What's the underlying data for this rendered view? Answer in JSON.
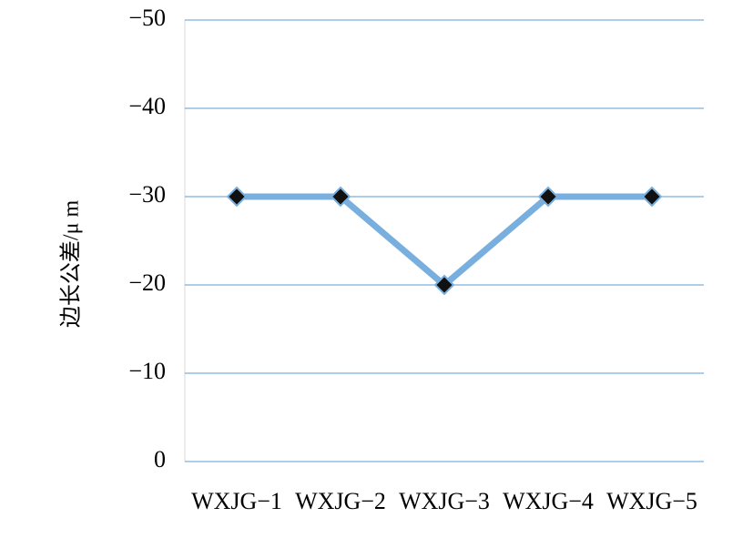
{
  "chart_data": {
    "type": "line",
    "ylabel": "边长公差/μ m",
    "categories": [
      "WXJG−1",
      "WXJG−2",
      "WXJG−3",
      "WXJG−4",
      "WXJG−5"
    ],
    "series": [
      {
        "values": [
          -30,
          -30,
          -20,
          -30,
          -30
        ],
        "color": "#79afdf",
        "marker_color": "#111111"
      }
    ],
    "ylim": [
      0,
      -50
    ],
    "yticks": [
      0,
      {
        "value": -10,
        "label": "−10"
      },
      {
        "value": -20,
        "label": "−20"
      },
      {
        "value": -30,
        "label": "−30"
      },
      {
        "value": -40,
        "label": "−40"
      },
      {
        "value": -50,
        "label": "−50"
      }
    ],
    "grid": true,
    "grid_color": "#5b9bd5"
  }
}
